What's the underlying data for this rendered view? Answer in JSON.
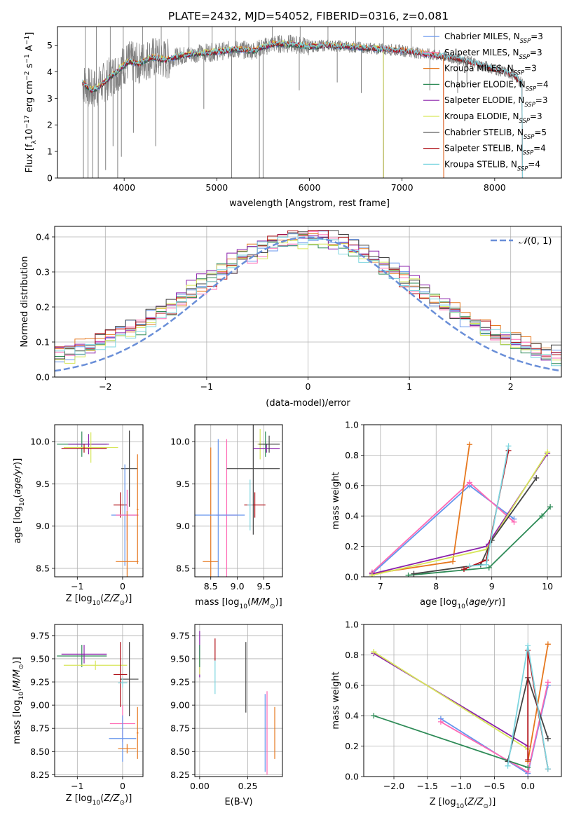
{
  "figure_title": "PLATE=2432, MJD=54052, FIBERID=0316, z=0.081",
  "colors": {
    "Chabrier MILES": "#6495ed",
    "Salpeter MILES": "#ff69b4",
    "Kroupa MILES": "#e6781f",
    "Chabrier ELODIE": "#2e8b57",
    "Salpeter ELODIE": "#8b22ab",
    "Kroupa ELODIE": "#d7e65a",
    "Chabrier STELIB": "#444444",
    "Salpeter STELIB": "#b01018",
    "Kroupa STELIB": "#7ed6e0",
    "data": "#808080",
    "normal": "#6a8fd8"
  },
  "chart_data": [
    {
      "id": "spectrum",
      "type": "line",
      "xlabel": "wavelength [Angstrom, rest frame]",
      "ylabel": "Flux [f_λ10^-17 erg cm^-2 s^-1 A^-1]",
      "xlim": [
        3280,
        8720
      ],
      "ylim": [
        0,
        5.7
      ],
      "xticks": [
        4000,
        5000,
        6000,
        7000,
        8000
      ],
      "yticks": [
        0,
        1,
        2,
        3,
        4,
        5
      ],
      "grid": false,
      "legend_position": "right",
      "continuum": {
        "x": [
          3550,
          3650,
          3750,
          3850,
          3950,
          4050,
          4150,
          4300,
          4450,
          4600,
          4800,
          5000,
          5200,
          5400,
          5600,
          5800,
          6000,
          6200,
          6400,
          6600,
          6800,
          7000,
          7200,
          7400,
          7600,
          7800,
          8000,
          8200,
          8300
        ],
        "y": [
          3.6,
          3.3,
          3.5,
          3.8,
          4.1,
          4.4,
          4.3,
          4.55,
          4.45,
          4.6,
          4.7,
          4.75,
          4.85,
          4.8,
          5.05,
          5.05,
          4.95,
          5.0,
          4.95,
          4.9,
          4.85,
          4.8,
          4.7,
          4.6,
          4.5,
          4.3,
          4.1,
          3.9,
          3.55
        ]
      },
      "series": [
        {
          "name": "Chabrier MILES",
          "label": "Chabrier MILES, N",
          "sub": "SSP",
          "n": "=3",
          "x_end": 7450
        },
        {
          "name": "Salpeter MILES",
          "label": "Salpeter MILES, N",
          "sub": "SSP",
          "n": "=3",
          "x_end": 7450
        },
        {
          "name": "Kroupa MILES",
          "label": "Kroupa MILES, N",
          "sub": "SSP",
          "n": "=3",
          "x_end": 7450
        },
        {
          "name": "Chabrier ELODIE",
          "label": "Chabrier ELODIE, N",
          "sub": "SSP",
          "n": "=4",
          "x_end": 6800
        },
        {
          "name": "Salpeter ELODIE",
          "label": "Salpeter ELODIE, N",
          "sub": "SSP",
          "n": "=3",
          "x_end": 6800
        },
        {
          "name": "Kroupa ELODIE",
          "label": "Kroupa ELODIE, N",
          "sub": "SSP",
          "n": "=3",
          "x_end": 6800
        },
        {
          "name": "Chabrier STELIB",
          "label": "Chabrier STELIB, N",
          "sub": "SSP",
          "n": "=5",
          "x_end": 8300
        },
        {
          "name": "Salpeter STELIB",
          "label": "Salpeter STELIB, N",
          "sub": "SSP",
          "n": "=4",
          "x_end": 8300
        },
        {
          "name": "Kroupa STELIB",
          "label": "Kroupa STELIB, N",
          "sub": "SSP",
          "n": "=4",
          "x_end": 8300
        }
      ],
      "data_dips": [
        {
          "x": 3560,
          "y": 0
        },
        {
          "x": 3610,
          "y": 0
        },
        {
          "x": 3660,
          "y": 0
        },
        {
          "x": 3720,
          "y": 0
        },
        {
          "x": 3800,
          "y": 0.3
        },
        {
          "x": 3880,
          "y": 1.2
        },
        {
          "x": 3930,
          "y": 0
        },
        {
          "x": 3970,
          "y": 0.8
        },
        {
          "x": 4100,
          "y": 1.7
        },
        {
          "x": 4340,
          "y": 1.2
        },
        {
          "x": 4860,
          "y": 2.6
        },
        {
          "x": 5160,
          "y": 0
        },
        {
          "x": 5460,
          "y": 0
        },
        {
          "x": 5500,
          "y": 0
        },
        {
          "x": 5890,
          "y": 3.3
        },
        {
          "x": 6300,
          "y": 3.6
        },
        {
          "x": 6560,
          "y": 3.2
        },
        {
          "x": 7300,
          "y": 3.3
        },
        {
          "x": 7600,
          "y": 3.2
        },
        {
          "x": 7700,
          "y": 3.6
        }
      ],
      "data_spikes": [
        {
          "x": 3580,
          "y": 5.7
        },
        {
          "x": 3700,
          "y": 5.7
        },
        {
          "x": 3850,
          "y": 5.7
        },
        {
          "x": 3990,
          "y": 5.7
        },
        {
          "x": 4200,
          "y": 5.7
        },
        {
          "x": 4400,
          "y": 5.7
        },
        {
          "x": 4700,
          "y": 5.7
        },
        {
          "x": 4950,
          "y": 5.7
        },
        {
          "x": 5200,
          "y": 5.7
        },
        {
          "x": 5600,
          "y": 5.7
        },
        {
          "x": 5900,
          "y": 5.7
        },
        {
          "x": 6200,
          "y": 5.7
        },
        {
          "x": 6500,
          "y": 5.7
        },
        {
          "x": 6800,
          "y": 5.7
        },
        {
          "x": 7100,
          "y": 5.7
        },
        {
          "x": 7350,
          "y": 5.7
        }
      ]
    },
    {
      "id": "residuals",
      "type": "step",
      "xlabel": "(data-model)/error",
      "ylabel": "Normed distribution",
      "xlim": [
        -2.5,
        2.5
      ],
      "ylim": [
        0,
        0.43
      ],
      "xticks": [
        -2,
        -1,
        0,
        1,
        2
      ],
      "yticks": [
        0.0,
        0.1,
        0.2,
        0.3,
        0.4
      ],
      "grid": true,
      "legend_position": "top-right",
      "legend_label": "N(0,1)",
      "bin_width": 0.1,
      "series": [
        {
          "name": "Chabrier MILES",
          "offset": 0.003,
          "phase": 0.0
        },
        {
          "name": "Salpeter MILES",
          "offset": -0.004,
          "phase": 1.1
        },
        {
          "name": "Kroupa MILES",
          "offset": 0.006,
          "phase": 2.3
        },
        {
          "name": "Chabrier ELODIE",
          "offset": -0.002,
          "phase": 3.4
        },
        {
          "name": "Salpeter ELODIE",
          "offset": 0.008,
          "phase": 4.2
        },
        {
          "name": "Kroupa ELODIE",
          "offset": -0.006,
          "phase": 5.1
        },
        {
          "name": "Chabrier STELIB",
          "offset": 0.004,
          "phase": 0.6
        },
        {
          "name": "Salpeter STELIB",
          "offset": 0.001,
          "phase": 1.8
        },
        {
          "name": "Kroupa STELIB",
          "offset": -0.003,
          "phase": 2.9
        }
      ]
    },
    {
      "id": "age_vs_Z",
      "type": "scatter",
      "xlabel": "Z [log10(Z/Z⊙)]",
      "ylabel": "age  [log10(age/yr)]",
      "xlim": [
        -1.5,
        0.45
      ],
      "ylim": [
        8.4,
        10.2
      ],
      "xticks": [
        -1,
        0
      ],
      "yticks": [
        8.5,
        9.0,
        9.5,
        10.0
      ],
      "grid": true,
      "points": [
        {
          "series": "Chabrier ELODIE",
          "x": -0.9,
          "y": 9.97,
          "xerr": 0.55,
          "yerr": 0.15
        },
        {
          "series": "Salpeter ELODIE",
          "x": -0.75,
          "y": 9.97,
          "xerr": 0.45,
          "yerr": 0.12
        },
        {
          "series": "Kroupa ELODIE",
          "x": -0.7,
          "y": 9.93,
          "xerr": 0.6,
          "yerr": 0.18
        },
        {
          "series": "Salpeter STELIB",
          "x": -0.85,
          "y": 9.92,
          "xerr": 0.5,
          "yerr": 0.05
        },
        {
          "series": "Chabrier STELIB",
          "x": 0.15,
          "y": 9.68,
          "xerr": 0.18,
          "yerr": 0.45
        },
        {
          "series": "Salpeter STELIB",
          "x": -0.05,
          "y": 9.25,
          "xerr": 0.15,
          "yerr": 0.15
        },
        {
          "series": "Chabrier MILES",
          "x": 0.05,
          "y": 9.13,
          "xerr": 0.3,
          "yerr": 0.6
        },
        {
          "series": "Salpeter MILES",
          "x": 0.1,
          "y": 9.13,
          "xerr": 0.25,
          "yerr": 0.3
        },
        {
          "series": "Kroupa MILES",
          "x": 0.1,
          "y": 8.58,
          "xerr": 0.25,
          "yerr": 0.6
        },
        {
          "series": "Kroupa MILES",
          "x": 0.33,
          "y": 9.2,
          "xerr": 0.02,
          "yerr": 0.65
        }
      ]
    },
    {
      "id": "age_vs_mass",
      "type": "scatter",
      "xlabel": "mass [log10(M/M⊙)]",
      "ylabel": "",
      "xlim": [
        8.2,
        9.85
      ],
      "ylim": [
        8.4,
        10.2
      ],
      "xticks": [
        8.5,
        9.0,
        9.5
      ],
      "yticks": [
        8.5,
        9.0,
        9.5,
        10.0
      ],
      "grid": true,
      "points": [
        {
          "series": "Kroupa MILES",
          "x": 8.5,
          "y": 8.58,
          "xerr": 0.15,
          "yerr": 1.35
        },
        {
          "series": "Salpeter MILES",
          "x": 8.8,
          "y": 9.13,
          "xerr": 0.2,
          "yerr": 0.9
        },
        {
          "series": "Chabrier MILES",
          "x": 8.64,
          "y": 9.13,
          "xerr": 0.5,
          "yerr": 0.9
        },
        {
          "series": "Chabrier STELIB",
          "x": 9.3,
          "y": 9.68,
          "xerr": 0.5,
          "yerr": 0.78
        },
        {
          "series": "Salpeter STELIB",
          "x": 9.33,
          "y": 9.25,
          "xerr": 0.2,
          "yerr": 0.15
        },
        {
          "series": "Kroupa STELIB",
          "x": 9.24,
          "y": 9.25,
          "xerr": 0.05,
          "yerr": 0.3
        },
        {
          "series": "Kroupa ELODIE",
          "x": 9.43,
          "y": 9.97,
          "xerr": 0.05,
          "yerr": 0.18
        },
        {
          "series": "Chabrier ELODIE",
          "x": 9.53,
          "y": 9.97,
          "xerr": 0.05,
          "yerr": 0.15
        },
        {
          "series": "Salpeter ELODIE",
          "x": 9.55,
          "y": 9.92,
          "xerr": 0.25,
          "yerr": 0.05
        },
        {
          "series": "Chabrier STELIB",
          "x": 9.6,
          "y": 9.97,
          "xerr": 0.2,
          "yerr": 0.1
        }
      ]
    },
    {
      "id": "weight_vs_age",
      "type": "line",
      "xlabel": "age  [log10(age/yr)]",
      "ylabel": "mass weight",
      "xlim": [
        6.7,
        10.25
      ],
      "ylim": [
        0,
        1.0
      ],
      "xticks": [
        7,
        8,
        9,
        10
      ],
      "yticks": [
        0.0,
        0.2,
        0.4,
        0.6,
        0.8,
        1.0
      ],
      "grid": true,
      "series": [
        {
          "name": "Chabrier MILES",
          "x": [
            6.85,
            8.6,
            9.4
          ],
          "y": [
            0.02,
            0.6,
            0.38
          ]
        },
        {
          "name": "Salpeter MILES",
          "x": [
            6.85,
            8.6,
            9.4
          ],
          "y": [
            0.03,
            0.62,
            0.36
          ]
        },
        {
          "name": "Kroupa MILES",
          "x": [
            6.85,
            8.3,
            8.6
          ],
          "y": [
            0.02,
            0.1,
            0.87
          ]
        },
        {
          "name": "Chabrier ELODIE",
          "x": [
            7.5,
            8.95,
            9.9,
            10.05
          ],
          "y": [
            0.01,
            0.06,
            0.4,
            0.46
          ]
        },
        {
          "name": "Salpeter ELODIE",
          "x": [
            6.85,
            8.9,
            10.0
          ],
          "y": [
            0.02,
            0.2,
            0.81
          ]
        },
        {
          "name": "Kroupa ELODIE",
          "x": [
            6.85,
            8.9,
            10.0
          ],
          "y": [
            0.01,
            0.18,
            0.82
          ]
        },
        {
          "name": "Chabrier STELIB",
          "x": [
            7.6,
            8.8,
            9.0,
            9.8
          ],
          "y": [
            0.02,
            0.08,
            0.24,
            0.65
          ]
        },
        {
          "name": "Salpeter STELIB",
          "x": [
            8.5,
            8.9,
            9.3
          ],
          "y": [
            0.05,
            0.11,
            0.83
          ]
        },
        {
          "name": "Kroupa STELIB",
          "x": [
            8.6,
            8.9,
            9.3
          ],
          "y": [
            0.07,
            0.08,
            0.86
          ]
        }
      ]
    },
    {
      "id": "mass_vs_Z",
      "type": "scatter",
      "xlabel": "Z [log10(Z/Z⊙)]",
      "ylabel": "mass [log10(M/M⊙)]",
      "xlim": [
        -1.5,
        0.45
      ],
      "ylim": [
        8.23,
        9.87
      ],
      "xticks": [
        -1,
        0
      ],
      "yticks": [
        8.25,
        8.5,
        8.75,
        9.0,
        9.25,
        9.5,
        9.75
      ],
      "grid": true,
      "points": [
        {
          "series": "Chabrier ELODIE",
          "x": -0.9,
          "y": 9.53,
          "xerr": 0.55,
          "yerr": 0.12
        },
        {
          "series": "Salpeter ELODIE",
          "x": -0.85,
          "y": 9.55,
          "xerr": 0.5,
          "yerr": 0.1
        },
        {
          "series": "Kroupa ELODIE",
          "x": -0.6,
          "y": 9.43,
          "xerr": 0.7,
          "yerr": 0.05
        },
        {
          "series": "Salpeter STELIB",
          "x": -0.05,
          "y": 9.33,
          "xerr": 0.15,
          "yerr": 0.35
        },
        {
          "series": "Chabrier STELIB",
          "x": 0.15,
          "y": 9.28,
          "xerr": 0.2,
          "yerr": 0.4
        },
        {
          "series": "Kroupa STELIB",
          "x": 0.0,
          "y": 9.24,
          "xerr": 0.1,
          "yerr": 0.05
        },
        {
          "series": "Salpeter MILES",
          "x": 0.0,
          "y": 8.8,
          "xerr": 0.28,
          "yerr": 0.2
        },
        {
          "series": "Chabrier MILES",
          "x": 0.0,
          "y": 8.64,
          "xerr": 0.3,
          "yerr": 0.25
        },
        {
          "series": "Kroupa MILES",
          "x": 0.1,
          "y": 8.53,
          "xerr": 0.2,
          "yerr": 0.05
        },
        {
          "series": "Kroupa MILES",
          "x": 0.33,
          "y": 8.7,
          "xerr": 0.02,
          "yerr": 0.28
        }
      ]
    },
    {
      "id": "mass_vs_ebv",
      "type": "scatter",
      "xlabel": "E(B-V)",
      "ylabel": "",
      "xlim": [
        -0.025,
        0.43
      ],
      "ylim": [
        8.23,
        9.87
      ],
      "xticks": [
        0.0,
        0.25
      ],
      "yticks": [
        8.25,
        8.5,
        8.75,
        9.0,
        9.25,
        9.5,
        9.75
      ],
      "grid": true,
      "points": [
        {
          "series": "Salpeter ELODIE",
          "x": 0.0,
          "y": 9.55,
          "xerr": 0,
          "yerr": 0.25
        },
        {
          "series": "Kroupa ELODIE",
          "x": 0.0,
          "y": 9.43,
          "xerr": 0,
          "yerr": 0.1
        },
        {
          "series": "Chabrier ELODIE",
          "x": 0.0,
          "y": 9.53,
          "xerr": 0,
          "yerr": 0.12
        },
        {
          "series": "Salpeter STELIB",
          "x": 0.08,
          "y": 9.6,
          "xerr": 0,
          "yerr": 0.12
        },
        {
          "series": "Kroupa STELIB",
          "x": 0.08,
          "y": 9.3,
          "xerr": 0,
          "yerr": 0.18
        },
        {
          "series": "Chabrier STELIB",
          "x": 0.24,
          "y": 9.3,
          "xerr": 0,
          "yerr": 0.38
        },
        {
          "series": "Salpeter MILES",
          "x": 0.35,
          "y": 8.7,
          "xerr": 0,
          "yerr": 0.45
        },
        {
          "series": "Chabrier MILES",
          "x": 0.34,
          "y": 8.7,
          "xerr": 0,
          "yerr": 0.42
        },
        {
          "series": "Kroupa MILES",
          "x": 0.39,
          "y": 8.7,
          "xerr": 0,
          "yerr": 0.28
        }
      ]
    },
    {
      "id": "weight_vs_Z",
      "type": "line",
      "xlabel": "Z [log10(Z/Z⊙)]",
      "ylabel": "mass weight",
      "xlim": [
        -2.45,
        0.5
      ],
      "ylim": [
        0,
        1.0
      ],
      "xticks": [
        -2.0,
        -1.5,
        -1.0,
        -0.5,
        0.0
      ],
      "yticks": [
        0.0,
        0.2,
        0.4,
        0.6,
        0.8,
        1.0
      ],
      "grid": true,
      "series": [
        {
          "name": "Chabrier MILES",
          "x": [
            -1.3,
            0.0,
            0.3
          ],
          "y": [
            0.38,
            0.02,
            0.6
          ]
        },
        {
          "name": "Salpeter MILES",
          "x": [
            -1.3,
            0.0,
            0.3
          ],
          "y": [
            0.36,
            0.03,
            0.62
          ]
        },
        {
          "name": "Kroupa MILES",
          "x": [
            0.0,
            0.3
          ],
          "y": [
            0.1,
            0.87
          ]
        },
        {
          "name": "Chabrier ELODIE",
          "x": [
            -2.3,
            0.0
          ],
          "y": [
            0.4,
            0.06
          ]
        },
        {
          "name": "Salpeter ELODIE",
          "x": [
            -2.3,
            0.0
          ],
          "y": [
            0.81,
            0.2
          ]
        },
        {
          "name": "Kroupa ELODIE",
          "x": [
            -2.3,
            0.0
          ],
          "y": [
            0.82,
            0.18
          ]
        },
        {
          "name": "Chabrier STELIB",
          "x": [
            -0.3,
            0.0,
            0.3
          ],
          "y": [
            0.1,
            0.65,
            0.25
          ]
        },
        {
          "name": "Salpeter STELIB",
          "x": [
            0.0,
            0.0,
            0.3
          ],
          "y": [
            0.11,
            0.83,
            0.05
          ]
        },
        {
          "name": "Kroupa STELIB",
          "x": [
            -0.3,
            0.0,
            0.3
          ],
          "y": [
            0.07,
            0.86,
            0.05
          ]
        }
      ]
    }
  ]
}
